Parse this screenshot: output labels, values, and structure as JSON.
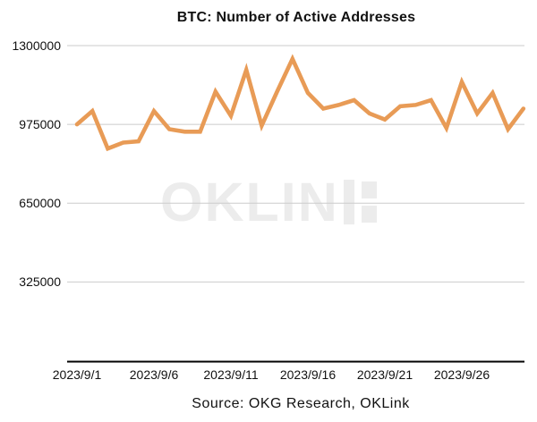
{
  "title": "BTC: Number of Active Addresses",
  "source": "Source: OKG Research, OKLink",
  "watermark": {
    "brand": "OKLINK",
    "text_part": "OKLIN"
  },
  "colors": {
    "line": "#e89b56",
    "grid": "#cbcbcb",
    "axis_line": "#000000",
    "text": "#111111",
    "watermark": "#ececec",
    "background": "#ffffff"
  },
  "chart_data": {
    "type": "line",
    "title": "BTC: Number of Active Addresses",
    "xlabel": "",
    "ylabel": "",
    "legend": "none",
    "grid": "horizontal",
    "ylim": [
      0,
      1430000
    ],
    "y_ticks": [
      325000,
      650000,
      975000,
      1300000
    ],
    "x_tick_labels": [
      "2023/9/1",
      "2023/9/6",
      "2023/9/11",
      "2023/9/16",
      "2023/9/21",
      "2023/9/26"
    ],
    "x": [
      "2023/9/1",
      "2023/9/2",
      "2023/9/3",
      "2023/9/4",
      "2023/9/5",
      "2023/9/6",
      "2023/9/7",
      "2023/9/8",
      "2023/9/9",
      "2023/9/10",
      "2023/9/11",
      "2023/9/12",
      "2023/9/13",
      "2023/9/14",
      "2023/9/15",
      "2023/9/16",
      "2023/9/17",
      "2023/9/18",
      "2023/9/19",
      "2023/9/20",
      "2023/9/21",
      "2023/9/22",
      "2023/9/23",
      "2023/9/24",
      "2023/9/25",
      "2023/9/26",
      "2023/9/27",
      "2023/9/28",
      "2023/9/29",
      "2023/9/30"
    ],
    "series": [
      {
        "name": "BTC Active Addresses",
        "values": [
          975000,
          1030000,
          875000,
          900000,
          905000,
          1030000,
          955000,
          945000,
          945000,
          1110000,
          1010000,
          1200000,
          970000,
          1110000,
          1245000,
          1105000,
          1040000,
          1055000,
          1075000,
          1020000,
          995000,
          1050000,
          1055000,
          1075000,
          960000,
          1150000,
          1020000,
          1105000,
          955000,
          1040000
        ]
      }
    ]
  }
}
